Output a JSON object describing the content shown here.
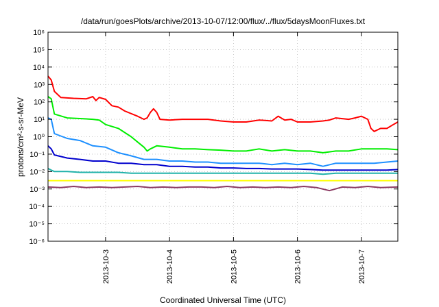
{
  "chart_data": {
    "type": "line",
    "title": "/data/run/goesPlots/archive/2013-10-07/12:00/flux/../flux/5daysMoonFluxes.txt",
    "xlabel": "Coordinated Universal Time (UTC)",
    "ylabel": "protons/cm²-s-sr-MeV",
    "y_scale": "log",
    "ylim_exponents": [
      -6,
      6
    ],
    "y_tick_labels": [
      "10⁻⁶",
      "10⁻⁵",
      "10⁻⁴",
      "10⁻³",
      "10⁻²",
      "10⁻¹",
      "10⁰",
      "10¹",
      "10²",
      "10³",
      "10⁴",
      "10⁵",
      "10⁶"
    ],
    "xlim_days": [
      2.1,
      7.57
    ],
    "x_ticks": [
      {
        "label": "2013-10-3",
        "day": 3
      },
      {
        "label": "2013-10-4",
        "day": 4
      },
      {
        "label": "2013-10-5",
        "day": 5
      },
      {
        "label": "2013-10-6",
        "day": 6
      },
      {
        "label": "2013-10-7",
        "day": 7
      }
    ],
    "grid": true,
    "legend": "none",
    "series": [
      {
        "color": "#ff0000",
        "x": [
          2.1,
          2.15,
          2.2,
          2.3,
          2.5,
          2.7,
          2.8,
          2.85,
          2.9,
          3.0,
          3.1,
          3.2,
          3.3,
          3.5,
          3.6,
          3.65,
          3.7,
          3.75,
          3.8,
          3.85,
          4.0,
          4.2,
          4.4,
          4.6,
          4.8,
          5.0,
          5.2,
          5.4,
          5.6,
          5.7,
          5.8,
          5.9,
          6.0,
          6.2,
          6.4,
          6.5,
          6.6,
          6.8,
          6.9,
          7.0,
          7.1,
          7.15,
          7.2,
          7.3,
          7.4,
          7.5,
          7.57
        ],
        "y": [
          3000,
          1800,
          400,
          180,
          160,
          150,
          200,
          120,
          180,
          140,
          60,
          50,
          30,
          15,
          10,
          12,
          25,
          40,
          25,
          10,
          9,
          10,
          10,
          10,
          8,
          7,
          7,
          9,
          8,
          15,
          9,
          10,
          7,
          7,
          8,
          9,
          12,
          10,
          12,
          15,
          10,
          3,
          2,
          3,
          3,
          5,
          7
        ]
      },
      {
        "color": "#00ee00",
        "x": [
          2.1,
          2.15,
          2.2,
          2.4,
          2.6,
          2.8,
          2.9,
          3.0,
          3.2,
          3.4,
          3.5,
          3.6,
          3.65,
          3.7,
          3.8,
          4.0,
          4.2,
          4.4,
          4.6,
          4.8,
          5.0,
          5.2,
          5.4,
          5.6,
          5.8,
          6.0,
          6.2,
          6.4,
          6.6,
          6.8,
          7.0,
          7.2,
          7.4,
          7.57
        ],
        "y": [
          200,
          150,
          20,
          12,
          11,
          10,
          9,
          5,
          3,
          1,
          0.5,
          0.25,
          0.15,
          0.2,
          0.3,
          0.25,
          0.2,
          0.2,
          0.18,
          0.17,
          0.15,
          0.15,
          0.2,
          0.15,
          0.18,
          0.15,
          0.15,
          0.12,
          0.15,
          0.15,
          0.2,
          0.2,
          0.2,
          0.18
        ]
      },
      {
        "color": "#1e90ff",
        "x": [
          2.1,
          2.15,
          2.2,
          2.4,
          2.6,
          2.8,
          3.0,
          3.2,
          3.4,
          3.6,
          3.8,
          4.0,
          4.2,
          4.4,
          4.6,
          4.8,
          5.0,
          5.2,
          5.4,
          5.6,
          5.8,
          6.0,
          6.2,
          6.4,
          6.6,
          6.8,
          7.0,
          7.2,
          7.4,
          7.57
        ],
        "y": [
          12,
          10,
          1.5,
          0.8,
          0.6,
          0.3,
          0.25,
          0.12,
          0.08,
          0.05,
          0.05,
          0.04,
          0.04,
          0.035,
          0.035,
          0.03,
          0.03,
          0.03,
          0.03,
          0.025,
          0.03,
          0.025,
          0.03,
          0.02,
          0.03,
          0.03,
          0.03,
          0.03,
          0.035,
          0.04
        ]
      },
      {
        "color": "#0000cd",
        "x": [
          2.1,
          2.15,
          2.2,
          2.4,
          2.6,
          2.8,
          3.0,
          3.2,
          3.4,
          3.6,
          3.8,
          4.0,
          4.2,
          4.4,
          4.6,
          4.8,
          5.0,
          5.2,
          5.4,
          5.6,
          5.8,
          6.0,
          6.2,
          6.4,
          6.6,
          6.8,
          7.0,
          7.2,
          7.4,
          7.57
        ],
        "y": [
          0.3,
          0.2,
          0.09,
          0.06,
          0.05,
          0.04,
          0.04,
          0.03,
          0.03,
          0.025,
          0.025,
          0.02,
          0.02,
          0.018,
          0.018,
          0.016,
          0.016,
          0.015,
          0.015,
          0.014,
          0.014,
          0.014,
          0.013,
          0.012,
          0.012,
          0.012,
          0.012,
          0.012,
          0.012,
          0.013
        ]
      },
      {
        "color": "#20b2aa",
        "x": [
          2.1,
          2.15,
          2.2,
          2.4,
          2.6,
          2.8,
          3.0,
          3.2,
          3.4,
          3.6,
          3.8,
          4.0,
          4.2,
          4.4,
          4.6,
          4.8,
          5.0,
          5.2,
          5.4,
          5.6,
          5.8,
          6.0,
          6.2,
          6.4,
          6.6,
          6.8,
          7.0,
          7.2,
          7.4,
          7.57
        ],
        "y": [
          0.015,
          0.012,
          0.01,
          0.01,
          0.009,
          0.009,
          0.009,
          0.009,
          0.008,
          0.008,
          0.008,
          0.008,
          0.008,
          0.008,
          0.008,
          0.008,
          0.008,
          0.008,
          0.008,
          0.008,
          0.008,
          0.008,
          0.008,
          0.007,
          0.008,
          0.008,
          0.008,
          0.008,
          0.008,
          0.008
        ]
      },
      {
        "color": "#ffff00",
        "x": [
          2.1,
          2.5,
          3.0,
          3.5,
          4.0,
          4.5,
          5.0,
          5.5,
          6.0,
          6.5,
          7.0,
          7.57
        ],
        "y": [
          0.003,
          0.003,
          0.003,
          0.003,
          0.003,
          0.003,
          0.003,
          0.003,
          0.003,
          0.003,
          0.003,
          0.003
        ]
      },
      {
        "color": "#8b3a62",
        "x": [
          2.1,
          2.3,
          2.5,
          2.7,
          2.9,
          3.1,
          3.3,
          3.5,
          3.7,
          3.9,
          4.1,
          4.3,
          4.5,
          4.7,
          4.9,
          5.1,
          5.3,
          5.5,
          5.7,
          5.9,
          6.1,
          6.3,
          6.5,
          6.7,
          6.9,
          7.1,
          7.3,
          7.57
        ],
        "y": [
          0.0013,
          0.0012,
          0.0014,
          0.0012,
          0.0013,
          0.0012,
          0.0013,
          0.0014,
          0.0012,
          0.0013,
          0.0012,
          0.0013,
          0.0013,
          0.0012,
          0.0014,
          0.0012,
          0.0013,
          0.0012,
          0.0013,
          0.0012,
          0.0014,
          0.0012,
          0.0008,
          0.0013,
          0.0012,
          0.0014,
          0.0012,
          0.0013
        ]
      }
    ]
  }
}
